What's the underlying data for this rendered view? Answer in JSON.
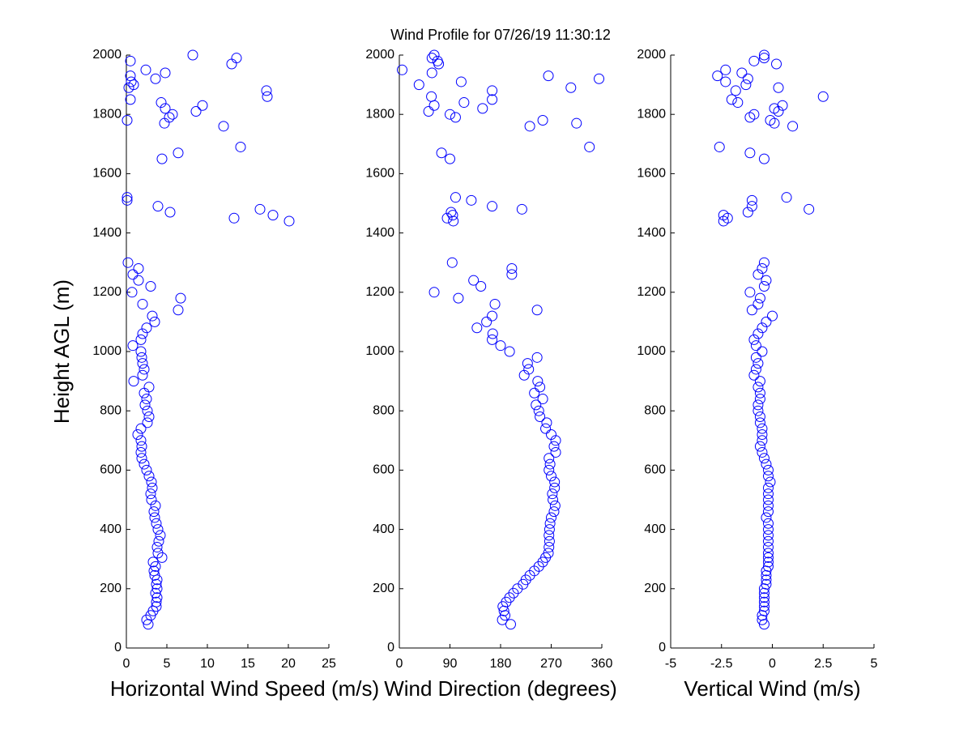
{
  "title": "Wind Profile for  07/26/19 11:30:12",
  "chart_data": [
    {
      "type": "scatter",
      "xlabel": "Horizontal Wind Speed (m/s)",
      "ylabel": "Height AGL (m)",
      "color": "#0000ff",
      "xlim": [
        0,
        25
      ],
      "xticks": [
        0,
        5,
        10,
        15,
        20,
        25
      ],
      "ylim": [
        0,
        2000
      ],
      "yticks": [
        0,
        200,
        400,
        600,
        800,
        1000,
        1200,
        1400,
        1600,
        1800,
        2000
      ],
      "x": [
        2.7,
        2.5,
        3.0,
        3.3,
        3.7,
        3.7,
        3.8,
        3.6,
        3.8,
        3.7,
        3.8,
        3.5,
        3.4,
        3.6,
        3.3,
        4.4,
        3.9,
        3.8,
        4.0,
        4.2,
        3.9,
        3.7,
        3.5,
        3.4,
        3.6,
        3.1,
        3.0,
        3.2,
        3.1,
        2.8,
        2.5,
        2.2,
        1.9,
        1.8,
        1.9,
        1.8,
        1.4,
        1.8,
        2.6,
        2.8,
        2.6,
        2.3,
        2.5,
        2.2,
        2.8,
        0.9,
        2.0,
        2.2,
        2.0,
        1.9,
        1.8,
        0.8,
        1.8,
        2.0,
        2.5,
        3.5,
        3.2,
        6.4,
        2.0,
        6.7,
        0.7,
        3.0,
        1.5,
        0.8,
        1.5,
        0.2,
        20.1,
        13.3,
        18.1,
        5.4,
        16.5,
        3.9,
        0.1,
        0.1,
        4.4,
        6.4,
        14.1,
        12.0,
        4.7,
        0.1,
        5.3,
        5.7,
        8.6,
        4.8,
        9.4,
        4.3,
        0.5,
        17.4,
        17.3,
        0.3,
        0.9,
        0.6,
        3.6,
        0.5,
        4.8,
        2.4,
        13.0,
        0.5,
        13.6,
        8.2
      ],
      "y": [
        80,
        95,
        110,
        125,
        140,
        155,
        170,
        185,
        200,
        215,
        230,
        245,
        260,
        275,
        290,
        305,
        320,
        340,
        360,
        380,
        400,
        420,
        440,
        460,
        480,
        500,
        520,
        540,
        560,
        580,
        600,
        620,
        640,
        660,
        680,
        700,
        720,
        740,
        760,
        780,
        800,
        820,
        840,
        860,
        880,
        900,
        920,
        940,
        960,
        980,
        1000,
        1020,
        1040,
        1060,
        1080,
        1100,
        1120,
        1140,
        1160,
        1180,
        1200,
        1220,
        1240,
        1260,
        1280,
        1300,
        1440,
        1450,
        1460,
        1470,
        1480,
        1490,
        1510,
        1520,
        1650,
        1670,
        1690,
        1760,
        1770,
        1780,
        1790,
        1800,
        1810,
        1820,
        1830,
        1840,
        1850,
        1860,
        1880,
        1890,
        1900,
        1910,
        1920,
        1930,
        1940,
        1950,
        1970,
        1980,
        1990,
        2000
      ]
    },
    {
      "type": "scatter",
      "xlabel": "Wind Direction (degrees)",
      "color": "#0000ff",
      "xlim": [
        0,
        360
      ],
      "xticks": [
        0,
        90,
        180,
        270,
        360
      ],
      "ylim": [
        0,
        2000
      ],
      "yticks": [
        0,
        200,
        400,
        600,
        800,
        1000,
        1200,
        1400,
        1600,
        1800,
        2000
      ],
      "x": [
        198,
        183,
        188,
        186,
        184,
        190,
        196,
        203,
        210,
        220,
        225,
        232,
        240,
        248,
        255,
        260,
        265,
        266,
        267,
        266,
        267,
        268,
        270,
        275,
        277,
        273,
        272,
        276,
        276,
        270,
        266,
        268,
        266,
        278,
        275,
        278,
        270,
        260,
        262,
        250,
        248,
        243,
        255,
        240,
        250,
        246,
        222,
        230,
        228,
        245,
        196,
        180,
        165,
        166,
        138,
        155,
        165,
        245,
        170,
        105,
        62,
        145,
        132,
        200,
        200,
        94,
        96,
        85,
        95,
        92,
        218,
        165,
        128,
        100,
        90,
        75,
        338,
        232,
        315,
        255,
        100,
        90,
        52,
        148,
        62,
        115,
        165,
        57,
        165,
        305,
        35,
        110,
        355,
        265,
        58,
        5,
        70,
        68,
        58,
        62
      ],
      "y": [
        80,
        95,
        110,
        125,
        140,
        155,
        170,
        185,
        200,
        215,
        230,
        245,
        260,
        275,
        290,
        305,
        320,
        340,
        360,
        380,
        400,
        420,
        440,
        460,
        480,
        500,
        520,
        540,
        560,
        580,
        600,
        620,
        640,
        660,
        680,
        700,
        720,
        740,
        760,
        780,
        800,
        820,
        840,
        860,
        880,
        900,
        920,
        940,
        960,
        980,
        1000,
        1020,
        1040,
        1060,
        1080,
        1100,
        1120,
        1140,
        1160,
        1180,
        1200,
        1220,
        1240,
        1260,
        1280,
        1300,
        1440,
        1450,
        1460,
        1470,
        1480,
        1490,
        1510,
        1520,
        1650,
        1670,
        1690,
        1760,
        1770,
        1780,
        1790,
        1800,
        1810,
        1820,
        1830,
        1840,
        1850,
        1860,
        1880,
        1890,
        1900,
        1910,
        1920,
        1930,
        1940,
        1950,
        1970,
        1980,
        1990,
        2000
      ]
    },
    {
      "type": "scatter",
      "xlabel": "Vertical Wind (m/s)",
      "color": "#0000ff",
      "xlim": [
        -5,
        5
      ],
      "xticks": [
        -5,
        -2.5,
        0,
        2.5,
        5
      ],
      "ylim": [
        0,
        2000
      ],
      "yticks": [
        0,
        200,
        400,
        600,
        800,
        1000,
        1200,
        1400,
        1600,
        1800,
        2000
      ],
      "x": [
        -0.4,
        -0.5,
        -0.5,
        -0.4,
        -0.4,
        -0.4,
        -0.4,
        -0.4,
        -0.4,
        -0.3,
        -0.3,
        -0.3,
        -0.3,
        -0.2,
        -0.2,
        -0.2,
        -0.2,
        -0.2,
        -0.2,
        -0.2,
        -0.2,
        -0.2,
        -0.3,
        -0.2,
        -0.2,
        -0.2,
        -0.2,
        -0.2,
        -0.1,
        -0.2,
        -0.2,
        -0.3,
        -0.4,
        -0.5,
        -0.6,
        -0.5,
        -0.5,
        -0.5,
        -0.6,
        -0.6,
        -0.7,
        -0.7,
        -0.6,
        -0.6,
        -0.7,
        -0.6,
        -0.9,
        -0.8,
        -0.7,
        -0.8,
        -0.5,
        -0.8,
        -0.9,
        -0.7,
        -0.5,
        -0.3,
        0.0,
        -1.0,
        -0.7,
        -0.6,
        -1.1,
        -0.4,
        -0.3,
        -0.7,
        -0.5,
        -0.4,
        -2.4,
        -2.2,
        -2.4,
        -1.2,
        1.8,
        -1.0,
        -1.0,
        0.7,
        -0.4,
        -1.1,
        -2.6,
        1.0,
        0.1,
        -0.1,
        -1.1,
        -0.9,
        0.3,
        0.1,
        0.5,
        -1.7,
        -2.0,
        2.5,
        -1.8,
        0.3,
        -1.3,
        -2.3,
        -1.2,
        -2.7,
        -1.5,
        -2.3,
        0.2,
        -0.9,
        -0.4,
        -0.4
      ],
      "y": [
        80,
        95,
        110,
        125,
        140,
        155,
        170,
        185,
        200,
        215,
        230,
        245,
        260,
        275,
        290,
        305,
        320,
        340,
        360,
        380,
        400,
        420,
        440,
        460,
        480,
        500,
        520,
        540,
        560,
        580,
        600,
        620,
        640,
        660,
        680,
        700,
        720,
        740,
        760,
        780,
        800,
        820,
        840,
        860,
        880,
        900,
        920,
        940,
        960,
        980,
        1000,
        1020,
        1040,
        1060,
        1080,
        1100,
        1120,
        1140,
        1160,
        1180,
        1200,
        1220,
        1240,
        1260,
        1280,
        1300,
        1440,
        1450,
        1460,
        1470,
        1480,
        1490,
        1510,
        1520,
        1650,
        1670,
        1690,
        1760,
        1770,
        1780,
        1790,
        1800,
        1810,
        1820,
        1830,
        1840,
        1850,
        1860,
        1880,
        1890,
        1900,
        1910,
        1920,
        1930,
        1940,
        1950,
        1970,
        1980,
        1990,
        2000
      ]
    }
  ]
}
